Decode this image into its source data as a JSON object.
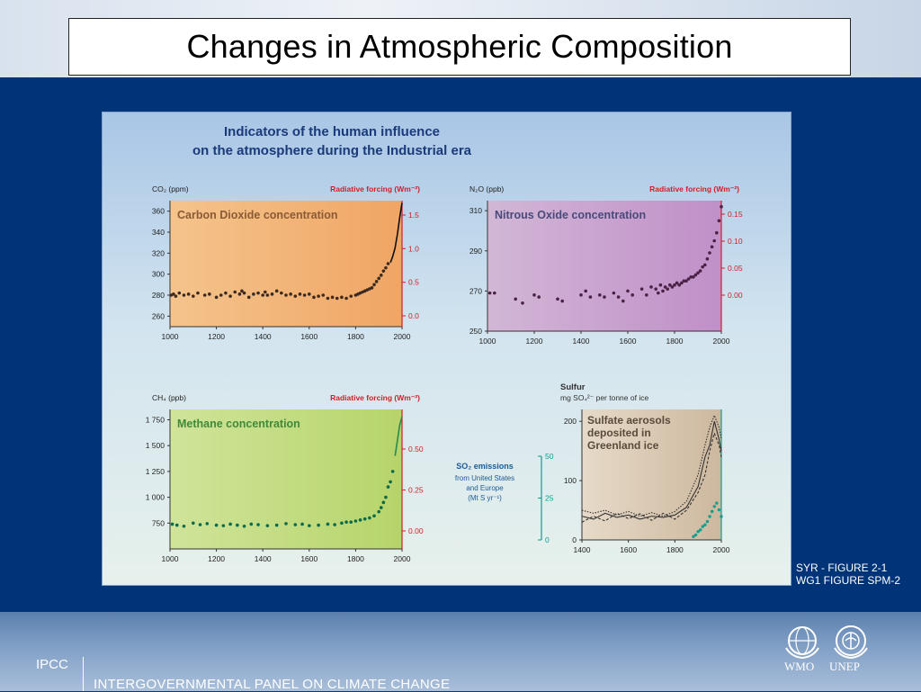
{
  "slide_title": "Changes in Atmospheric Composition",
  "figure_title_line1": "Indicators of the human influence",
  "figure_title_line2": "on the atmosphere during the Industrial era",
  "references": {
    "line1": "SYR - FIGURE 2-1",
    "line2": "WG1 FIGURE SPM-2"
  },
  "footer": {
    "ipcc": "IPCC",
    "panel_name": "INTERGOVERNMENTAL PANEL ON CLIMATE CHANGE",
    "wmo": "WMO",
    "unep": "UNEP"
  },
  "colors": {
    "accent_red": "#d0202a",
    "co2_bg": "#f2b36e",
    "n2o_bg": "#c9a6cf",
    "ch4_bg": "#c3db7b",
    "sulfur_bg": "#dccbb4",
    "teal": "#0f9e8e"
  },
  "chart_data": [
    {
      "type": "scatter",
      "title": "Carbon Dioxide concentration",
      "left_axis_label": "CO₂ (ppm)",
      "right_axis_label": "Radiative forcing (Wm⁻²)",
      "x_ticks": [
        "1000",
        "1200",
        "1400",
        "1600",
        "1800",
        "2000"
      ],
      "y_ticks": [
        "260",
        "280",
        "300",
        "320",
        "340",
        "360"
      ],
      "right_ticks": [
        "0.0",
        "0.5",
        "1.0",
        "1.5"
      ],
      "xlim": [
        1000,
        2000
      ],
      "ylim": [
        250,
        370
      ],
      "points": [
        [
          1005,
          280
        ],
        [
          1015,
          281
        ],
        [
          1025,
          279
        ],
        [
          1040,
          282
        ],
        [
          1060,
          280
        ],
        [
          1080,
          281
        ],
        [
          1100,
          279
        ],
        [
          1120,
          282
        ],
        [
          1150,
          280
        ],
        [
          1170,
          281
        ],
        [
          1200,
          278
        ],
        [
          1220,
          280
        ],
        [
          1240,
          282
        ],
        [
          1260,
          279
        ],
        [
          1280,
          283
        ],
        [
          1300,
          281
        ],
        [
          1310,
          284
        ],
        [
          1320,
          282
        ],
        [
          1340,
          278
        ],
        [
          1360,
          281
        ],
        [
          1380,
          282
        ],
        [
          1400,
          280
        ],
        [
          1410,
          283
        ],
        [
          1420,
          280
        ],
        [
          1440,
          281
        ],
        [
          1460,
          284
        ],
        [
          1480,
          282
        ],
        [
          1500,
          280
        ],
        [
          1520,
          281
        ],
        [
          1540,
          279
        ],
        [
          1560,
          281
        ],
        [
          1580,
          280
        ],
        [
          1600,
          281
        ],
        [
          1620,
          278
        ],
        [
          1640,
          279
        ],
        [
          1660,
          280
        ],
        [
          1680,
          277
        ],
        [
          1700,
          278
        ],
        [
          1720,
          277
        ],
        [
          1740,
          278
        ],
        [
          1760,
          277
        ],
        [
          1780,
          279
        ],
        [
          1800,
          280
        ],
        [
          1810,
          281
        ],
        [
          1820,
          282
        ],
        [
          1830,
          283
        ],
        [
          1840,
          284
        ],
        [
          1850,
          285
        ],
        [
          1860,
          286
        ],
        [
          1870,
          287
        ],
        [
          1880,
          290
        ],
        [
          1890,
          293
        ],
        [
          1900,
          296
        ],
        [
          1910,
          299
        ],
        [
          1920,
          303
        ],
        [
          1930,
          306
        ],
        [
          1940,
          310
        ]
      ],
      "line": [
        [
          1950,
          311
        ],
        [
          1960,
          317
        ],
        [
          1970,
          325
        ],
        [
          1980,
          338
        ],
        [
          1990,
          354
        ],
        [
          2000,
          368
        ]
      ]
    },
    {
      "type": "scatter",
      "title": "Nitrous Oxide concentration",
      "left_axis_label": "N₂O (ppb)",
      "right_axis_label": "Radiative forcing (Wm⁻²)",
      "x_ticks": [
        "1000",
        "1200",
        "1400",
        "1600",
        "1800",
        "2000"
      ],
      "y_ticks": [
        "250",
        "270",
        "290",
        "310"
      ],
      "right_ticks": [
        "0.00",
        "0.05",
        "0.10",
        "0.15"
      ],
      "xlim": [
        1000,
        2000
      ],
      "ylim": [
        250,
        315
      ],
      "points": [
        [
          1010,
          269
        ],
        [
          1030,
          269
        ],
        [
          1120,
          266
        ],
        [
          1150,
          264
        ],
        [
          1200,
          268
        ],
        [
          1220,
          267
        ],
        [
          1300,
          266
        ],
        [
          1320,
          265
        ],
        [
          1400,
          268
        ],
        [
          1420,
          270
        ],
        [
          1440,
          267
        ],
        [
          1480,
          268
        ],
        [
          1500,
          267
        ],
        [
          1540,
          269
        ],
        [
          1560,
          267
        ],
        [
          1580,
          265
        ],
        [
          1600,
          270
        ],
        [
          1620,
          268
        ],
        [
          1660,
          271
        ],
        [
          1680,
          268
        ],
        [
          1700,
          272
        ],
        [
          1720,
          271
        ],
        [
          1730,
          269
        ],
        [
          1740,
          273
        ],
        [
          1750,
          270
        ],
        [
          1760,
          272
        ],
        [
          1770,
          271
        ],
        [
          1780,
          273
        ],
        [
          1790,
          272
        ],
        [
          1800,
          273
        ],
        [
          1810,
          274
        ],
        [
          1820,
          273
        ],
        [
          1830,
          274
        ],
        [
          1840,
          275
        ],
        [
          1850,
          275
        ],
        [
          1860,
          276
        ],
        [
          1870,
          277
        ],
        [
          1880,
          277
        ],
        [
          1890,
          278
        ],
        [
          1900,
          279
        ],
        [
          1910,
          280
        ],
        [
          1920,
          282
        ],
        [
          1930,
          283
        ],
        [
          1940,
          286
        ],
        [
          1950,
          289
        ],
        [
          1960,
          292
        ],
        [
          1970,
          295
        ],
        [
          1980,
          299
        ],
        [
          1990,
          305
        ],
        [
          2000,
          312
        ]
      ]
    },
    {
      "type": "scatter",
      "title": "Methane concentration",
      "left_axis_label": "CH₄ (ppb)",
      "right_axis_label": "Radiative forcing (Wm⁻²)",
      "x_ticks": [
        "1000",
        "1200",
        "1400",
        "1600",
        "1800",
        "2000"
      ],
      "y_ticks": [
        "750",
        "1 000",
        "1 250",
        "1 500",
        "1 750"
      ],
      "right_ticks": [
        "0.00",
        "0.25",
        "0.50"
      ],
      "xlim": [
        1000,
        2000
      ],
      "ylim": [
        500,
        1850
      ],
      "points": [
        [
          1010,
          740
        ],
        [
          1030,
          730
        ],
        [
          1060,
          720
        ],
        [
          1100,
          750
        ],
        [
          1130,
          735
        ],
        [
          1160,
          745
        ],
        [
          1200,
          730
        ],
        [
          1230,
          725
        ],
        [
          1260,
          740
        ],
        [
          1290,
          730
        ],
        [
          1320,
          720
        ],
        [
          1350,
          740
        ],
        [
          1380,
          735
        ],
        [
          1420,
          725
        ],
        [
          1460,
          730
        ],
        [
          1500,
          745
        ],
        [
          1540,
          735
        ],
        [
          1570,
          740
        ],
        [
          1600,
          725
        ],
        [
          1640,
          730
        ],
        [
          1680,
          740
        ],
        [
          1710,
          735
        ],
        [
          1740,
          750
        ],
        [
          1760,
          760
        ],
        [
          1780,
          760
        ],
        [
          1800,
          770
        ],
        [
          1820,
          780
        ],
        [
          1840,
          790
        ],
        [
          1860,
          800
        ],
        [
          1880,
          820
        ],
        [
          1900,
          860
        ],
        [
          1910,
          900
        ],
        [
          1920,
          950
        ],
        [
          1930,
          1000
        ],
        [
          1940,
          1100
        ],
        [
          1950,
          1150
        ],
        [
          1960,
          1250
        ]
      ],
      "line": [
        [
          1970,
          1400
        ],
        [
          1980,
          1550
        ],
        [
          1990,
          1700
        ],
        [
          2000,
          1780
        ]
      ]
    },
    {
      "type": "line",
      "title": "Sulfate aerosols deposited in Greenland ice",
      "left_axis_label": "Sulfur",
      "left_axis_unit": "mg SO₄²⁻ per tonne of ice",
      "right_axis_label": "SO₂ emissions",
      "right_axis_sub": [
        "from United States",
        "and Europe"
      ],
      "right_axis_unit": "(Mt S yr⁻¹)",
      "x_ticks": [
        "1400",
        "1600",
        "1800",
        "2000"
      ],
      "y_ticks": [
        "0",
        "100",
        "200"
      ],
      "right_ticks": [
        "0",
        "25",
        "50"
      ],
      "xlim": [
        1400,
        2000
      ],
      "ylim": [
        0,
        220
      ],
      "series": [
        {
          "values": [
            [
              1400,
              40
            ],
            [
              1450,
              35
            ],
            [
              1500,
              45
            ],
            [
              1550,
              38
            ],
            [
              1600,
              42
            ],
            [
              1650,
              35
            ],
            [
              1700,
              40
            ],
            [
              1750,
              38
            ],
            [
              1800,
              42
            ],
            [
              1850,
              55
            ],
            [
              1900,
              90
            ],
            [
              1930,
              140
            ],
            [
              1950,
              160
            ],
            [
              1970,
              200
            ],
            [
              1990,
              170
            ],
            [
              2000,
              150
            ]
          ]
        },
        {
          "values": [
            [
              1400,
              30
            ],
            [
              1450,
              40
            ],
            [
              1500,
              32
            ],
            [
              1550,
              45
            ],
            [
              1600,
              36
            ],
            [
              1650,
              44
            ],
            [
              1700,
              33
            ],
            [
              1750,
              45
            ],
            [
              1800,
              35
            ],
            [
              1850,
              50
            ],
            [
              1900,
              80
            ],
            [
              1930,
              110
            ],
            [
              1950,
              150
            ],
            [
              1970,
              180
            ],
            [
              1990,
              160
            ],
            [
              2000,
              140
            ]
          ]
        },
        {
          "values": [
            [
              1400,
              50
            ],
            [
              1450,
              45
            ],
            [
              1500,
              50
            ],
            [
              1550,
              42
            ],
            [
              1600,
              48
            ],
            [
              1650,
              40
            ],
            [
              1700,
              46
            ],
            [
              1750,
              40
            ],
            [
              1800,
              48
            ],
            [
              1850,
              65
            ],
            [
              1900,
              110
            ],
            [
              1930,
              160
            ],
            [
              1950,
              190
            ],
            [
              1970,
              210
            ],
            [
              1990,
              190
            ],
            [
              2000,
              170
            ]
          ]
        }
      ],
      "emissions_points": [
        [
          1880,
          2
        ],
        [
          1890,
          3
        ],
        [
          1900,
          5
        ],
        [
          1910,
          6
        ],
        [
          1920,
          8
        ],
        [
          1930,
          9
        ],
        [
          1940,
          11
        ],
        [
          1950,
          14
        ],
        [
          1960,
          17
        ],
        [
          1970,
          20
        ],
        [
          1980,
          22
        ],
        [
          1990,
          18
        ],
        [
          2000,
          14
        ]
      ]
    }
  ]
}
